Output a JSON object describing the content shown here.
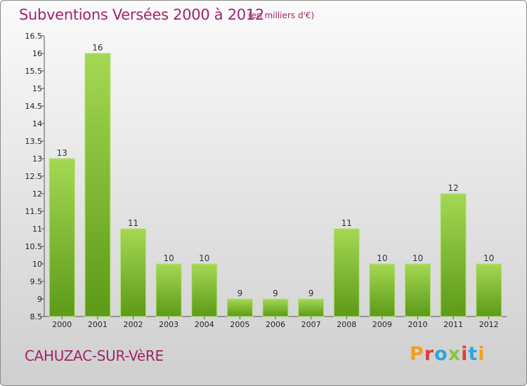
{
  "title": "Subventions Versées 2000 à 2012",
  "unit": "(en milliers d'€)",
  "commune": "CAHUZAC-SUR-VèRE",
  "brand": {
    "text": "Proxiti",
    "colors": [
      "#f0a020",
      "#e23c3c",
      "#2aa8e0",
      "#8bc53f",
      "#e23c3c",
      "#2aa8e0",
      "#f0a020"
    ]
  },
  "colors": {
    "title": "#a0246a",
    "bar_top": "#9fd44e",
    "bar_bottom": "#5f9e1c"
  },
  "chart_data": {
    "type": "bar",
    "categories": [
      "2000",
      "2001",
      "2002",
      "2003",
      "2004",
      "2005",
      "2006",
      "2007",
      "2008",
      "2009",
      "2010",
      "2011",
      "2012"
    ],
    "values": [
      13,
      16,
      11,
      10,
      10,
      9,
      9,
      9,
      11,
      10,
      10,
      12,
      10
    ],
    "ylim": [
      8.5,
      16.5
    ],
    "yticks": [
      "8.5",
      "9",
      "9.5",
      "10",
      "10.5",
      "11",
      "11.5",
      "12",
      "12.5",
      "13",
      "13.5",
      "14",
      "14.5",
      "15",
      "15.5",
      "16",
      "16.5"
    ],
    "grid": false,
    "legend": "none"
  }
}
